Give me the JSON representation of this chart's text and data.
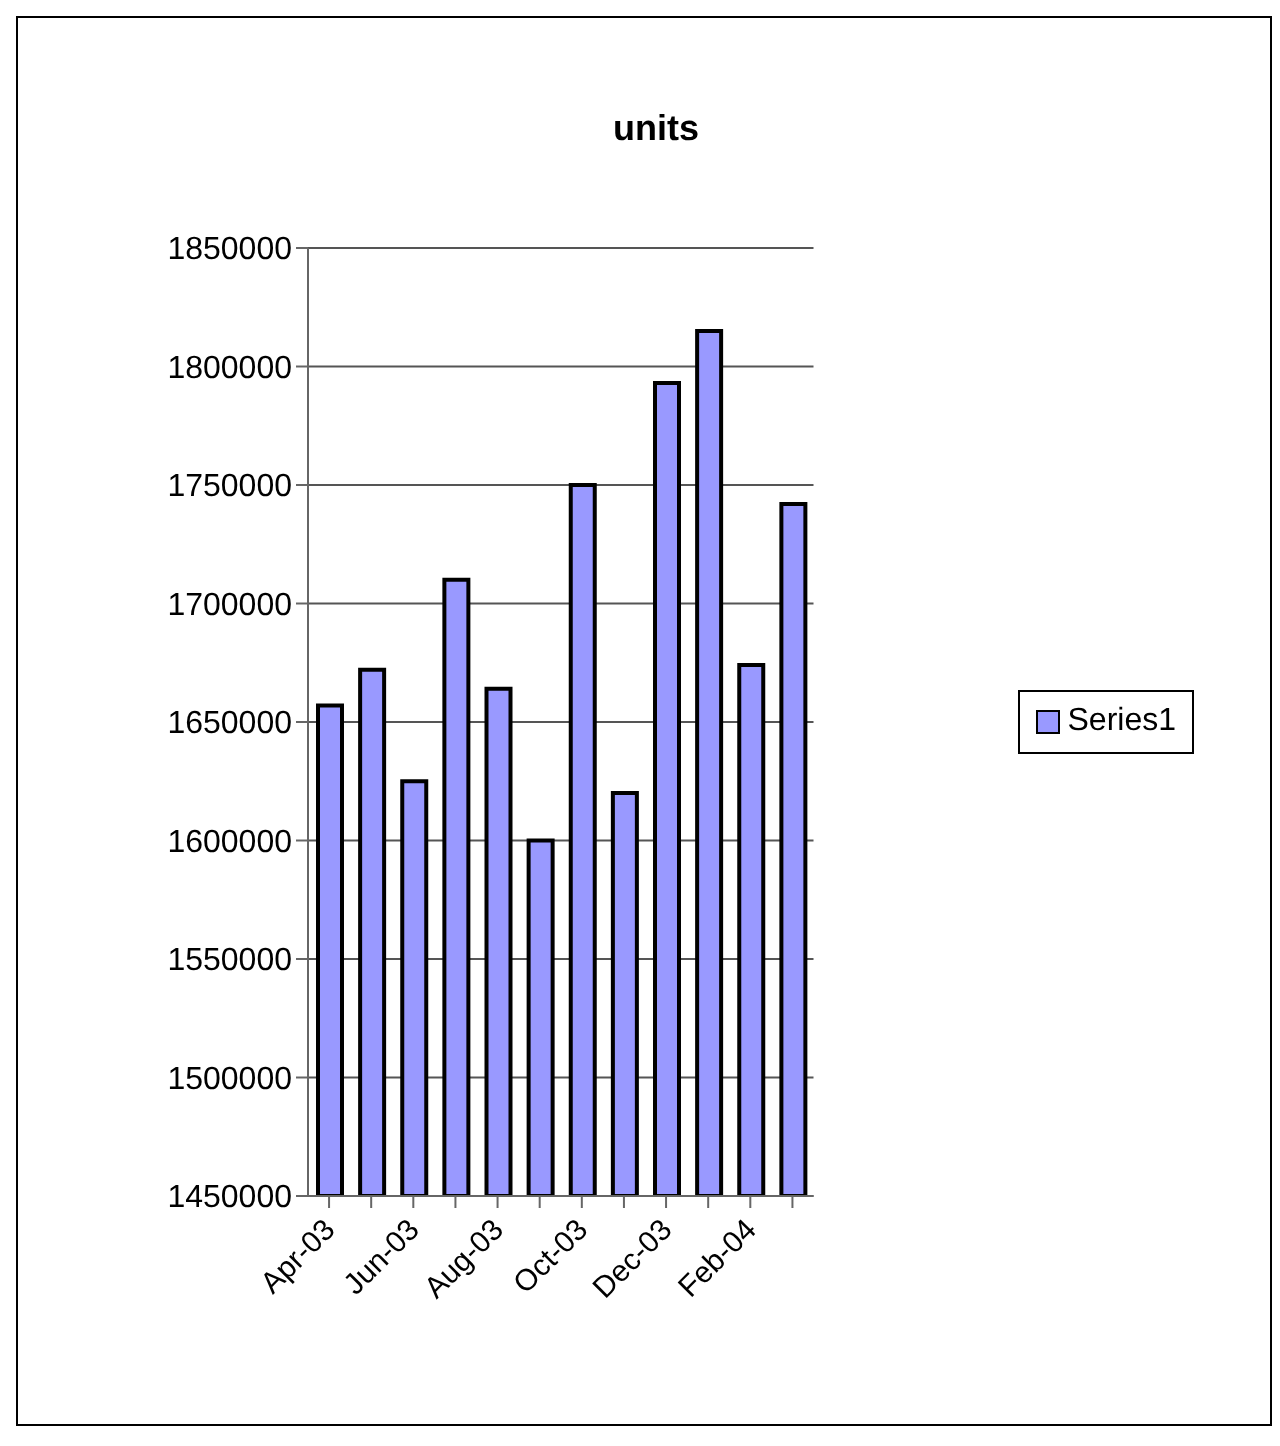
{
  "chart_data": {
    "type": "bar",
    "title": "units",
    "categories": [
      "Apr-03",
      null,
      "Jun-03",
      null,
      "Aug-03",
      null,
      "Oct-03",
      null,
      "Dec-03",
      null,
      "Feb-04",
      null
    ],
    "series": [
      {
        "name": "Series1",
        "color": "#9999ff",
        "values": [
          1657000,
          1672000,
          1625000,
          1710000,
          1664000,
          1600000,
          1750000,
          1620000,
          1793000,
          1815000,
          1674000,
          1742000
        ]
      }
    ],
    "ylim": [
      1450000,
      1850000
    ],
    "yticks": [
      1450000,
      1500000,
      1550000,
      1600000,
      1650000,
      1700000,
      1750000,
      1800000,
      1850000
    ],
    "grid": "y",
    "legend": "right"
  }
}
